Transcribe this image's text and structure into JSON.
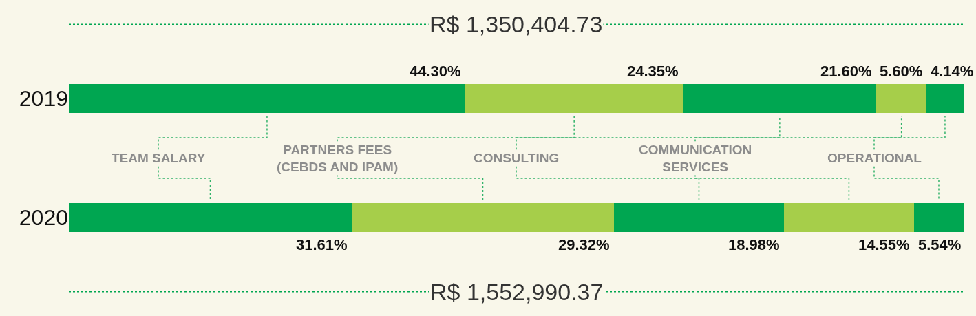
{
  "chart_data": {
    "type": "bar",
    "orientation": "horizontal",
    "stacked": true,
    "tick_labels": "y",
    "legend": false,
    "categories": [
      "2019",
      "2020"
    ],
    "series": [
      {
        "name": "TEAM SALARY",
        "color": "#00a651",
        "values": [
          44.3,
          31.61
        ],
        "value_labels": [
          "44.30%",
          "31.61%"
        ]
      },
      {
        "name": "PARTNERS FEES (CEBDS AND IPAM)",
        "color": "#a6ce4a",
        "values": [
          24.35,
          29.32
        ],
        "value_labels": [
          "24.35%",
          "29.32%"
        ]
      },
      {
        "name": "CONSULTING",
        "color": "#00a651",
        "values": [
          21.6,
          18.98
        ],
        "value_labels": [
          "21.60%",
          "18.98%"
        ]
      },
      {
        "name": "COMMUNICATION SERVICES",
        "color": "#a6ce4a",
        "values": [
          5.6,
          14.55
        ],
        "value_labels": [
          "5.60%",
          "14.55%"
        ]
      },
      {
        "name": "OPERATIONAL",
        "color": "#00a651",
        "values": [
          4.14,
          5.54
        ],
        "value_labels": [
          "4.14%",
          "5.54%"
        ]
      }
    ],
    "totals": [
      "R$ 1,350,404.73",
      "R$ 1,552,990.37"
    ]
  }
}
